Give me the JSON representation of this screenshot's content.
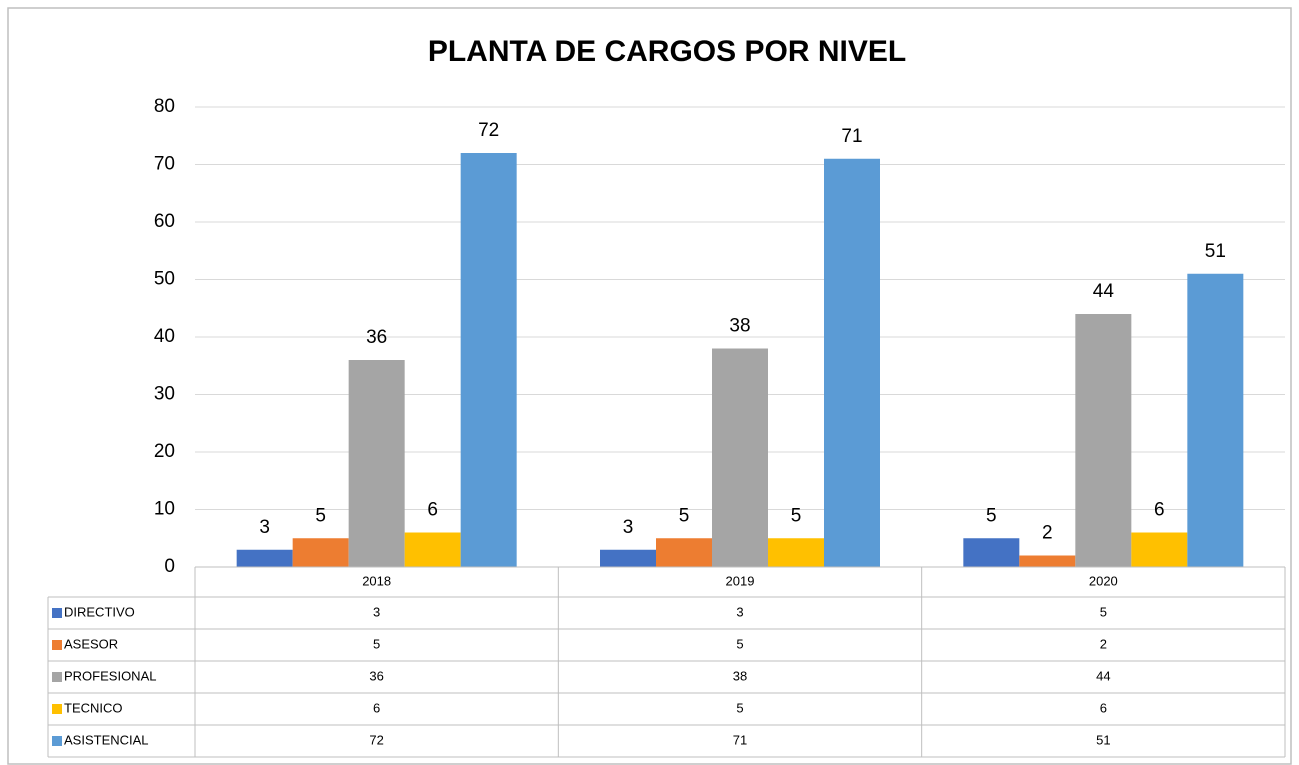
{
  "chart_data": {
    "type": "bar",
    "title": "PLANTA DE CARGOS POR NIVEL",
    "categories": [
      "2018",
      "2019",
      "2020"
    ],
    "series": [
      {
        "name": "DIRECTIVO",
        "color": "#4472c4",
        "values": [
          3,
          3,
          5
        ]
      },
      {
        "name": "ASESOR",
        "color": "#ed7d31",
        "values": [
          5,
          5,
          2
        ]
      },
      {
        "name": "PROFESIONAL",
        "color": "#a5a5a5",
        "values": [
          36,
          38,
          44
        ]
      },
      {
        "name": "TECNICO",
        "color": "#ffc000",
        "values": [
          6,
          5,
          6
        ]
      },
      {
        "name": "ASISTENCIAL",
        "color": "#5b9bd5",
        "values": [
          72,
          71,
          51
        ]
      }
    ],
    "ylim": [
      0,
      80
    ],
    "yticks": [
      0,
      10,
      20,
      30,
      40,
      50,
      60,
      70,
      80
    ],
    "grid": true
  }
}
